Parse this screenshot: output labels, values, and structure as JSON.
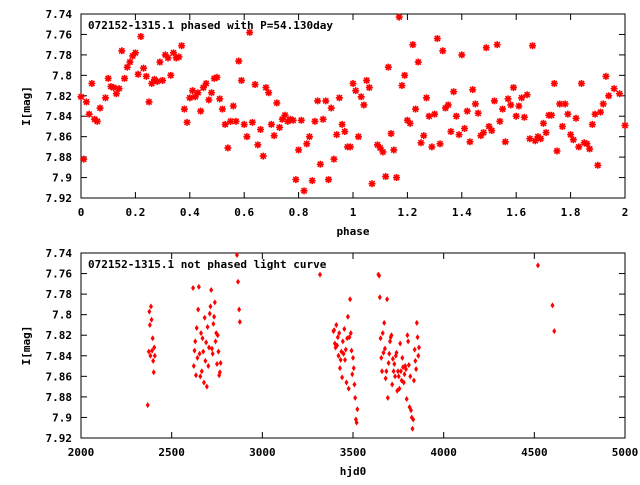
{
  "colors": {
    "points": "#ff0000",
    "axes": "#000000",
    "text": "#000000",
    "background": "#ffffff"
  },
  "chart_data": [
    {
      "type": "scatter",
      "title": "072152-1315.1 phased with P=54.130day",
      "xlabel": "phase",
      "ylabel": "I[mag]",
      "xlim": [
        0,
        2
      ],
      "ylim": [
        7.92,
        7.74
      ],
      "y_inverted": true,
      "xticks": [
        "0",
        "0.2",
        "0.4",
        "0.6",
        "0.8",
        "1",
        "1.2",
        "1.4",
        "1.6",
        "1.8",
        "2"
      ],
      "xtick_values": [
        0,
        0.2,
        0.4,
        0.6,
        0.8,
        1.0,
        1.2,
        1.4,
        1.6,
        1.8,
        2.0
      ],
      "yticks": [
        "7.74",
        "7.76",
        "7.78",
        "7.8",
        "7.82",
        "7.84",
        "7.86",
        "7.88",
        "7.9",
        "7.92"
      ],
      "ytick_values": [
        7.74,
        7.76,
        7.78,
        7.8,
        7.82,
        7.84,
        7.86,
        7.88,
        7.9,
        7.92
      ],
      "grid": false,
      "marker": "star",
      "series": [
        {
          "x": [
            0.0,
            0.01,
            0.02,
            0.03,
            0.04,
            0.05,
            0.06,
            0.07,
            0.09,
            0.1,
            0.11,
            0.12,
            0.13,
            0.14,
            0.15,
            0.16,
            0.17,
            0.18,
            0.19,
            0.2,
            0.21,
            0.22,
            0.23,
            0.24,
            0.25,
            0.26,
            0.27,
            0.28,
            0.29,
            0.3,
            0.31,
            0.32,
            0.33,
            0.34,
            0.35,
            0.36,
            0.37,
            0.38,
            0.39,
            0.4,
            0.41,
            0.42,
            0.43,
            0.44,
            0.45,
            0.46,
            0.47,
            0.48,
            0.49,
            0.5,
            0.51,
            0.52,
            0.53,
            0.54,
            0.55,
            0.56,
            0.57,
            0.58,
            0.59,
            0.6,
            0.61,
            0.62,
            0.63,
            0.64,
            0.65,
            0.66,
            0.67,
            0.68,
            0.69,
            0.7,
            0.71,
            0.72,
            0.73,
            0.74,
            0.75,
            0.76,
            0.77,
            0.78,
            0.79,
            0.8,
            0.81,
            0.82,
            0.83,
            0.84,
            0.85,
            0.86,
            0.87,
            0.88,
            0.89,
            0.9,
            0.91,
            0.92,
            0.93,
            0.94,
            0.95,
            0.96,
            0.97,
            0.98,
            0.99,
            1.0,
            1.01,
            1.02,
            1.03,
            1.04,
            1.05,
            1.06,
            1.07,
            1.09,
            1.1,
            1.11,
            1.12,
            1.13,
            1.14,
            1.15,
            1.16,
            1.17,
            1.18,
            1.19,
            1.2,
            1.21,
            1.22,
            1.23,
            1.24,
            1.25,
            1.26,
            1.27,
            1.28,
            1.29,
            1.3,
            1.31,
            1.32,
            1.33,
            1.34,
            1.35,
            1.36,
            1.37,
            1.38,
            1.39,
            1.4,
            1.41,
            1.42,
            1.43,
            1.44,
            1.45,
            1.46,
            1.47,
            1.48,
            1.49,
            1.5,
            1.51,
            1.52,
            1.53,
            1.54,
            1.55,
            1.56,
            1.57,
            1.58,
            1.59,
            1.6,
            1.61,
            1.62,
            1.63,
            1.64,
            1.65,
            1.66,
            1.67,
            1.68,
            1.69,
            1.7,
            1.71,
            1.72,
            1.73,
            1.74,
            1.75,
            1.76,
            1.77,
            1.78,
            1.79,
            1.8,
            1.81,
            1.82,
            1.83,
            1.84,
            1.85,
            1.86,
            1.87,
            1.88,
            1.89,
            1.9,
            1.91,
            1.92,
            1.93,
            1.94,
            1.96,
            1.98,
            2.0
          ],
          "y": [
            7.821,
            7.882,
            7.826,
            7.838,
            7.808,
            7.843,
            7.845,
            7.832,
            7.822,
            7.803,
            7.811,
            7.812,
            7.818,
            7.813,
            7.776,
            7.803,
            7.792,
            7.787,
            7.781,
            7.778,
            7.799,
            7.762,
            7.793,
            7.801,
            7.826,
            7.808,
            7.804,
            7.806,
            7.787,
            7.805,
            7.78,
            7.783,
            7.8,
            7.778,
            7.783,
            7.782,
            7.771,
            7.833,
            7.846,
            7.822,
            7.815,
            7.821,
            7.817,
            7.835,
            7.812,
            7.808,
            7.824,
            7.817,
            7.803,
            7.802,
            7.823,
            7.833,
            7.848,
            7.871,
            7.845,
            7.83,
            7.845,
            7.786,
            7.805,
            7.848,
            7.86,
            7.758,
            7.846,
            7.809,
            7.868,
            7.853,
            7.879,
            7.812,
            7.817,
            7.848,
            7.859,
            7.827,
            7.851,
            7.843,
            7.839,
            7.845,
            7.843,
            7.844,
            7.902,
            7.873,
            7.844,
            7.913,
            7.867,
            7.86,
            7.903,
            7.845,
            7.825,
            7.887,
            7.843,
            7.825,
            7.902,
            7.832,
            7.882,
            7.858,
            7.822,
            7.848,
            7.855,
            7.87,
            7.87,
            7.808,
            7.815,
            7.86,
            7.821,
            7.829,
            7.805,
            7.812,
            7.906,
            7.868,
            7.871,
            7.875,
            7.899,
            7.792,
            7.857,
            7.873,
            7.9,
            7.743,
            7.81,
            7.8,
            7.844,
            7.847,
            7.77,
            7.833,
            7.787,
            7.866,
            7.859,
            7.822,
            7.84,
            7.87,
            7.838,
            7.764,
            7.867,
            7.776,
            7.832,
            7.829,
            7.855,
            7.816,
            7.84,
            7.858,
            7.78,
            7.852,
            7.835,
            7.865,
            7.814,
            7.828,
            7.837,
            7.859,
            7.856,
            7.773,
            7.85,
            7.854,
            7.825,
            7.77,
            7.845,
            7.833,
            7.865,
            7.823,
            7.829,
            7.812,
            7.84,
            7.83,
            7.822,
            7.841,
            7.819,
            7.862,
            7.771,
            7.864,
            7.86,
            7.862,
            7.847,
            7.856,
            7.839,
            7.839,
            7.808,
            7.874,
            7.828,
            7.85,
            7.828,
            7.838,
            7.858,
            7.863,
            7.842,
            7.87,
            7.808,
            7.866,
            7.867,
            7.872,
            7.848,
            7.838,
            7.888,
            7.836,
            7.828,
            7.801,
            7.82,
            7.813,
            7.818,
            7.849
          ]
        }
      ]
    },
    {
      "type": "scatter",
      "title": "072152-1315.1 not phased light curve",
      "xlabel": "hjd0",
      "ylabel": "I[mag]",
      "xlim": [
        2000,
        5000
      ],
      "ylim": [
        7.92,
        7.74
      ],
      "y_inverted": true,
      "xticks": [
        "2000",
        "2500",
        "3000",
        "3500",
        "4000",
        "4500",
        "5000"
      ],
      "xtick_values": [
        2000,
        2500,
        3000,
        3500,
        4000,
        4500,
        5000
      ],
      "yticks": [
        "7.74",
        "7.76",
        "7.78",
        "7.8",
        "7.82",
        "7.84",
        "7.86",
        "7.88",
        "7.9",
        "7.92"
      ],
      "ytick_values": [
        7.74,
        7.76,
        7.78,
        7.8,
        7.82,
        7.84,
        7.86,
        7.88,
        7.9,
        7.92
      ],
      "grid": false,
      "marker": "diamond",
      "series": [
        {
          "x": [
            2368,
            2374,
            2377,
            2380,
            2383,
            2386,
            2389,
            2392,
            2395,
            2398,
            2401,
            2404,
            2407,
            2618,
            2622,
            2626,
            2630,
            2634,
            2638,
            2642,
            2646,
            2650,
            2654,
            2658,
            2662,
            2666,
            2670,
            2674,
            2678,
            2682,
            2686,
            2690,
            2694,
            2698,
            2702,
            2706,
            2710,
            2714,
            2718,
            2722,
            2726,
            2730,
            2734,
            2738,
            2742,
            2746,
            2750,
            2754,
            2758,
            2762,
            2766,
            2770,
            2860,
            2866,
            2872,
            2876,
            3318,
            3392,
            3396,
            3400,
            3404,
            3408,
            3412,
            3416,
            3420,
            3424,
            3428,
            3432,
            3436,
            3440,
            3444,
            3448,
            3452,
            3456,
            3460,
            3464,
            3468,
            3472,
            3476,
            3480,
            3484,
            3488,
            3492,
            3496,
            3500,
            3504,
            3508,
            3512,
            3516,
            3520,
            3524,
            3640,
            3644,
            3648,
            3652,
            3656,
            3660,
            3664,
            3668,
            3672,
            3676,
            3680,
            3684,
            3688,
            3692,
            3696,
            3700,
            3704,
            3708,
            3712,
            3716,
            3720,
            3724,
            3728,
            3732,
            3736,
            3740,
            3744,
            3748,
            3752,
            3756,
            3760,
            3764,
            3768,
            3772,
            3776,
            3780,
            3784,
            3788,
            3792,
            3796,
            3800,
            3804,
            3808,
            3812,
            3816,
            3820,
            3824,
            3828,
            3832,
            3836,
            3840,
            3844,
            3848,
            3852,
            3856,
            3860,
            3864,
            4520,
            4600,
            4610
          ],
          "y": [
            7.888,
            7.836,
            7.797,
            7.81,
            7.84,
            7.792,
            7.805,
            7.835,
            7.823,
            7.845,
            7.856,
            7.832,
            7.84,
            7.774,
            7.85,
            7.835,
            7.826,
            7.859,
            7.813,
            7.842,
            7.795,
            7.773,
            7.838,
            7.86,
            7.818,
            7.855,
            7.823,
            7.836,
            7.866,
            7.803,
            7.845,
            7.827,
            7.87,
            7.812,
            7.85,
            7.832,
            7.799,
            7.792,
            7.776,
            7.833,
            7.838,
            7.809,
            7.802,
            7.788,
            7.826,
            7.818,
            7.848,
            7.82,
            7.836,
            7.859,
            7.856,
            7.847,
            7.742,
            7.768,
            7.795,
            7.807,
            7.761,
            7.816,
            7.815,
            7.828,
            7.832,
            7.81,
            7.83,
            7.822,
            7.84,
            7.818,
            7.852,
            7.844,
            7.836,
            7.861,
            7.826,
            7.838,
            7.814,
            7.844,
            7.834,
            7.866,
            7.823,
            7.802,
            7.872,
            7.822,
            7.785,
            7.818,
            7.835,
            7.858,
            7.842,
            7.852,
            7.868,
            7.881,
            7.902,
            7.905,
            7.892,
            7.761,
            7.762,
            7.783,
            7.823,
            7.842,
            7.855,
            7.818,
            7.837,
            7.808,
            7.833,
            7.862,
            7.855,
            7.785,
            7.881,
            7.847,
            7.838,
            7.826,
            7.822,
            7.82,
            7.868,
            7.843,
            7.855,
            7.848,
            7.86,
            7.84,
            7.837,
            7.874,
            7.855,
            7.86,
            7.872,
            7.828,
            7.855,
            7.864,
            7.842,
            7.851,
            7.866,
            7.858,
            7.85,
            7.853,
            7.882,
            7.82,
            7.826,
            7.849,
            7.89,
            7.86,
            7.893,
            7.9,
            7.911,
            7.902,
            7.864,
            7.834,
            7.845,
            7.853,
            7.808,
            7.822,
            7.84,
            7.832,
            7.752,
            7.791,
            7.816
          ]
        }
      ]
    }
  ]
}
